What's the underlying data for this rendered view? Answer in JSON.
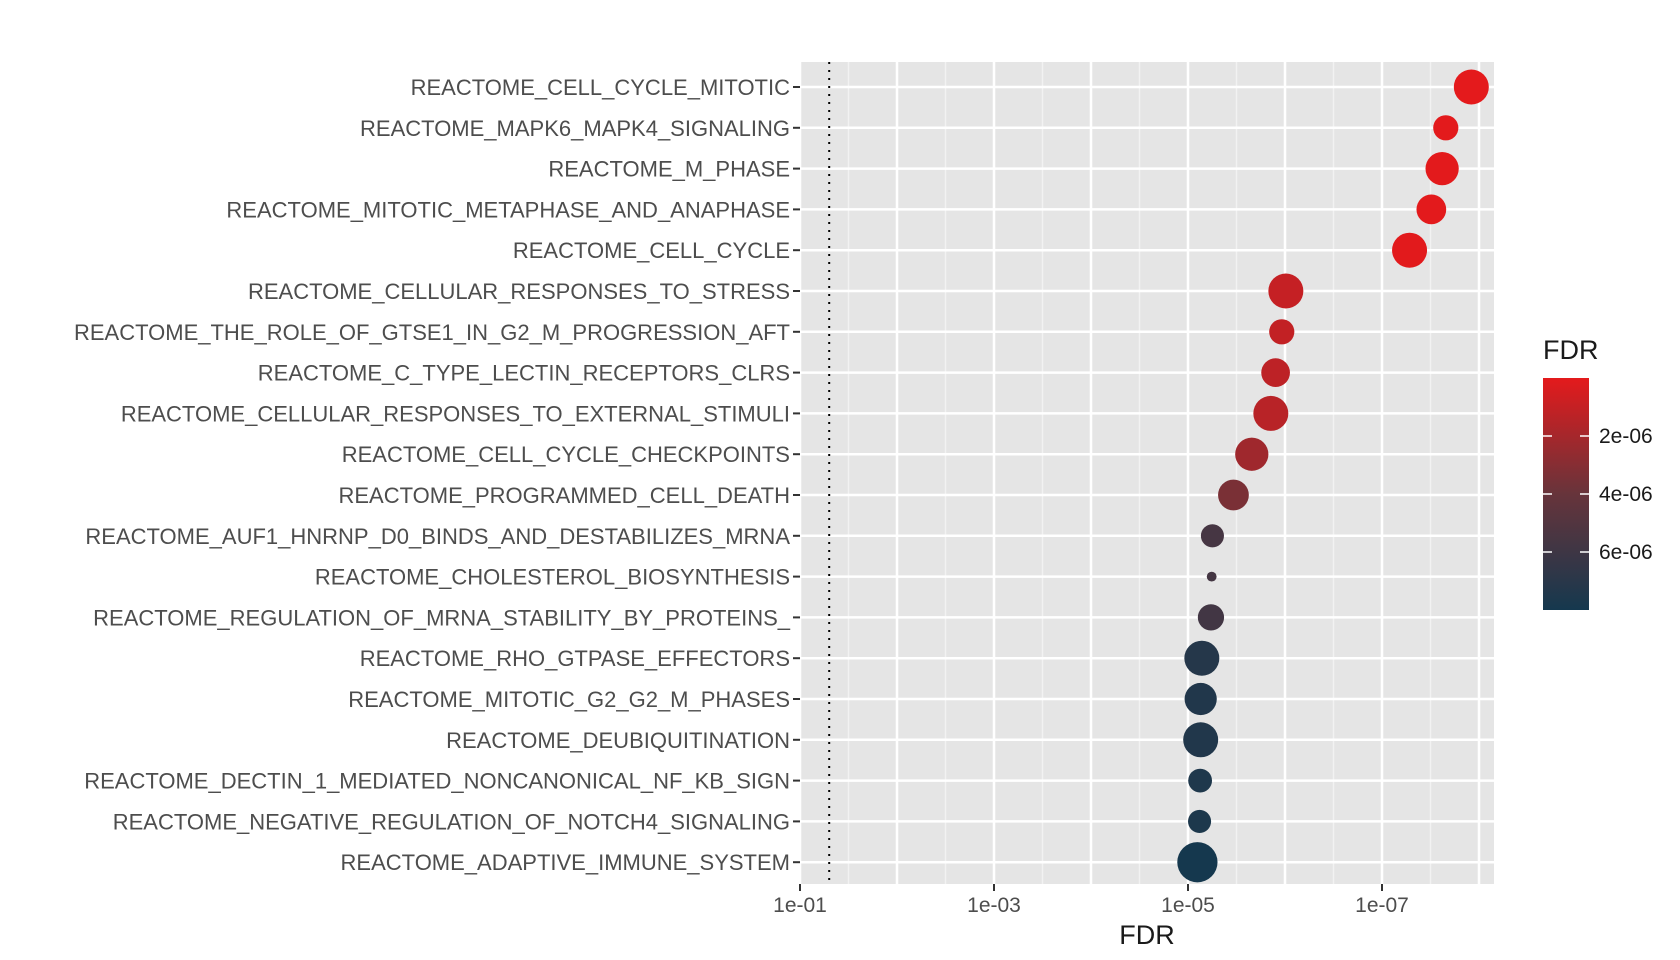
{
  "chart_data": {
    "type": "scatter",
    "orientation": "dot-plot, categories on y axis",
    "categories": [
      "REACTOME_CELL_CYCLE_MITOTIC",
      "REACTOME_MAPK6_MAPK4_SIGNALING",
      "REACTOME_M_PHASE",
      "REACTOME_MITOTIC_METAPHASE_AND_ANAPHASE",
      "REACTOME_CELL_CYCLE",
      "REACTOME_CELLULAR_RESPONSES_TO_STRESS",
      "REACTOME_THE_ROLE_OF_GTSE1_IN_G2_M_PROGRESSION_AFT",
      "REACTOME_C_TYPE_LECTIN_RECEPTORS_CLRS",
      "REACTOME_CELLULAR_RESPONSES_TO_EXTERNAL_STIMULI",
      "REACTOME_CELL_CYCLE_CHECKPOINTS",
      "REACTOME_PROGRAMMED_CELL_DEATH",
      "REACTOME_AUF1_HNRNP_D0_BINDS_AND_DESTABILIZES_MRNA",
      "REACTOME_CHOLESTEROL_BIOSYNTHESIS",
      "REACTOME_REGULATION_OF_MRNA_STABILITY_BY_PROTEINS_",
      "REACTOME_RHO_GTPASE_EFFECTORS",
      "REACTOME_MITOTIC_G2_G2_M_PHASES",
      "REACTOME_DEUBIQUITINATION",
      "REACTOME_DECTIN_1_MEDIATED_NONCANONICAL_NF_KB_SIGN",
      "REACTOME_NEGATIVE_REGULATION_OF_NOTCH4_SIGNALING",
      "REACTOME_ADAPTIVE_IMMUNE_SYSTEM"
    ],
    "fdr": [
      1.2e-08,
      2.2e-08,
      2.4e-08,
      3.1e-08,
      5.2e-08,
      9.8e-07,
      1.08e-06,
      1.25e-06,
      1.4e-06,
      2.2e-06,
      3.4e-06,
      5.6e-06,
      5.7e-06,
      5.8e-06,
      7.2e-06,
      7.4e-06,
      7.4e-06,
      7.5e-06,
      7.6e-06,
      8e-06
    ],
    "size_relative": [
      1.0,
      0.72,
      0.95,
      0.85,
      1.0,
      1.0,
      0.72,
      0.82,
      1.0,
      0.95,
      0.88,
      0.66,
      0.28,
      0.75,
      1.0,
      0.92,
      1.0,
      0.68,
      0.66,
      1.15
    ],
    "xlabel": "FDR",
    "x_scale": "log10 reversed",
    "xlim": [
      0.1,
      1e-08
    ],
    "x_ticks": [
      "1e-01",
      "1e-03",
      "1e-05",
      "1e-07"
    ],
    "reference_line": 0.05,
    "grid": true,
    "legend": {
      "title": "FDR",
      "type": "colorbar",
      "position": "right",
      "ticks": [
        "2e-06",
        "4e-06",
        "6e-06"
      ],
      "range": [
        0,
        8e-06
      ],
      "colors": {
        "low": "#e41a1c",
        "mid": "#67343b",
        "high": "#15384e"
      }
    }
  }
}
